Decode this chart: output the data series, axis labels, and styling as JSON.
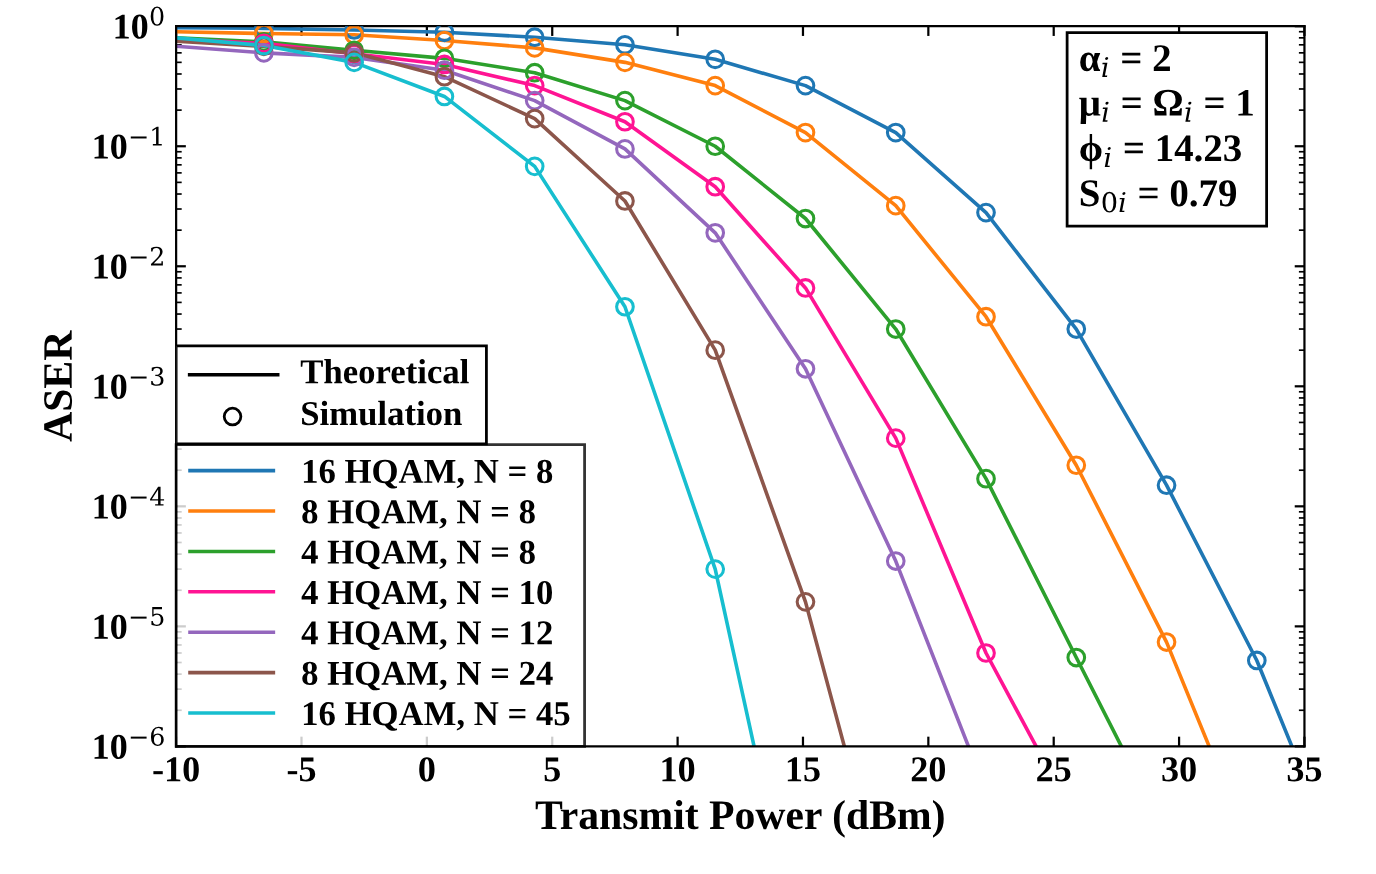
{
  "chart_data": {
    "type": "line",
    "xlabel": "Transmit Power (dBm)",
    "ylabel": "ASER",
    "log": "y",
    "xlim": [
      -10,
      35
    ],
    "xticks": [
      -10,
      -5,
      0,
      5,
      10,
      15,
      20,
      25,
      30,
      35
    ],
    "ylim": [
      1e-06,
      1
    ],
    "yticks": [
      {
        "value": 1,
        "label": "10$^{0}$"
      },
      {
        "value": 0.1,
        "label": "10$^{−1}$"
      },
      {
        "value": 0.01,
        "label": "10$^{−2}$"
      },
      {
        "value": 0.001,
        "label": "10$^{−3}$"
      },
      {
        "value": 0.0001,
        "label": "10$^{−4}$"
      },
      {
        "value": 1e-05,
        "label": "10$^{−5}$"
      },
      {
        "value": 1e-06,
        "label": "10$^{−6}$"
      }
    ],
    "grid": false,
    "legend": "bottom left",
    "line_style": "solid",
    "annotations": [
      "α$_{i}$ = 2\nμ$_{i}$ = Ω$_{i}$ = 1\nϕ$_{i}$ = 14.23\nS$_{0i}$ = 0.79",
      "Theoretical",
      "Simulation"
    ],
    "series": [
      {
        "name": "16 HQAM, N = 8",
        "color": "#1f77b4",
        "x": [
          -10,
          -6.5,
          -2.9,
          0.7,
          4.3,
          7.9,
          11.5,
          15.1,
          18.7,
          22.3,
          25.9,
          29.5,
          33.1,
          34.5
        ],
        "values": [
          0.97,
          0.96,
          0.93,
          0.89,
          0.81,
          0.7,
          0.53,
          0.32,
          0.13,
          0.028,
          0.003,
          0.00015,
          5.2e-06,
          1e-06
        ]
      },
      {
        "name": "8 HQAM, N = 8",
        "color": "#ff7f0e",
        "x": [
          -10,
          -6.5,
          -2.9,
          0.7,
          4.3,
          7.9,
          11.5,
          15.1,
          18.7,
          22.3,
          25.9,
          29.5,
          31.2
        ],
        "values": [
          0.9,
          0.87,
          0.85,
          0.76,
          0.66,
          0.5,
          0.32,
          0.13,
          0.032,
          0.0038,
          0.00022,
          7.4e-06,
          1e-06
        ]
      },
      {
        "name": "4 HQAM, N = 8",
        "color": "#2ca02c",
        "x": [
          -10,
          -6.5,
          -2.9,
          0.7,
          4.3,
          7.9,
          11.5,
          15.1,
          18.7,
          22.3,
          25.9,
          27.7
        ],
        "values": [
          0.8,
          0.74,
          0.63,
          0.54,
          0.41,
          0.24,
          0.1,
          0.025,
          0.003,
          0.00017,
          5.5e-06,
          1e-06
        ]
      },
      {
        "name": "4 HQAM, N = 10",
        "color": "#ff1493",
        "x": [
          -10,
          -6.5,
          -2.9,
          0.7,
          4.3,
          7.9,
          11.5,
          15.1,
          18.7,
          22.3,
          24.3
        ],
        "values": [
          0.78,
          0.72,
          0.59,
          0.48,
          0.32,
          0.16,
          0.046,
          0.0066,
          0.00037,
          6e-06,
          1e-06
        ]
      },
      {
        "name": "4 HQAM, N = 12",
        "color": "#9467bd",
        "x": [
          -10,
          -6.5,
          -2.9,
          0.7,
          4.3,
          7.9,
          11.5,
          15.1,
          18.7,
          21.6
        ],
        "values": [
          0.68,
          0.6,
          0.55,
          0.43,
          0.24,
          0.095,
          0.019,
          0.0014,
          3.5e-05,
          1e-06
        ]
      },
      {
        "name": "8 HQAM, N = 24",
        "color": "#8c564b",
        "x": [
          -10,
          -6.5,
          -2.9,
          0.7,
          4.3,
          7.9,
          11.5,
          15.1,
          16.65
        ],
        "values": [
          0.75,
          0.68,
          0.6,
          0.38,
          0.17,
          0.035,
          0.002,
          1.6e-05,
          1e-06
        ]
      },
      {
        "name": "16 HQAM, N = 45",
        "color": "#17becf",
        "x": [
          -10,
          -6.5,
          -2.9,
          0.7,
          4.3,
          7.9,
          11.5,
          13.05
        ],
        "values": [
          0.8,
          0.69,
          0.5,
          0.26,
          0.068,
          0.0046,
          3e-05,
          1e-06
        ]
      },
      {
        "type": "scatter",
        "marker": "circle",
        "color": "#000000",
        "x": [
          -6.5,
          -2.9,
          0.7,
          4.3,
          7.9,
          11.5,
          15.1,
          18.7,
          22.3,
          25.9,
          29.5,
          33.1,
          -6.5,
          -2.9,
          0.7,
          4.3,
          7.9,
          11.5,
          15.1,
          18.7,
          22.3,
          25.9,
          29.5,
          -6.5,
          -2.9,
          0.7,
          4.3,
          7.9,
          11.5,
          15.1,
          18.7,
          22.3,
          25.9,
          -6.5,
          -2.9,
          0.7,
          4.3,
          7.9,
          11.5,
          15.1,
          18.7,
          22.3,
          -6.5,
          -2.9,
          0.7,
          4.3,
          7.9,
          11.5,
          15.1,
          18.7,
          -6.5,
          -2.9,
          0.7,
          4.3,
          7.9,
          11.5,
          15.1,
          -6.5,
          -2.9,
          0.7,
          4.3,
          7.9,
          11.5
        ],
        "values": [
          0.96,
          0.93,
          0.89,
          0.81,
          0.7,
          0.53,
          0.32,
          0.13,
          0.028,
          0.003,
          0.00015,
          5.2e-06,
          0.87,
          0.85,
          0.76,
          0.66,
          0.5,
          0.32,
          0.13,
          0.032,
          0.0038,
          0.00022,
          7.4e-06,
          0.74,
          0.63,
          0.54,
          0.41,
          0.24,
          0.1,
          0.025,
          0.003,
          0.00017,
          5.5e-06,
          0.72,
          0.59,
          0.48,
          0.32,
          0.16,
          0.046,
          0.0066,
          0.00037,
          6e-06,
          0.6,
          0.55,
          0.43,
          0.24,
          0.095,
          0.019,
          0.0014,
          3.5e-05,
          0.68,
          0.6,
          0.38,
          0.17,
          0.035,
          0.002,
          1.6e-05,
          0.69,
          0.5,
          0.26,
          0.068,
          0.0046,
          3e-05
        ],
        "colors": [
          "#1f77b4",
          "#1f77b4",
          "#1f77b4",
          "#1f77b4",
          "#1f77b4",
          "#1f77b4",
          "#1f77b4",
          "#1f77b4",
          "#1f77b4",
          "#1f77b4",
          "#1f77b4",
          "#1f77b4",
          "#ff7f0e",
          "#ff7f0e",
          "#ff7f0e",
          "#ff7f0e",
          "#ff7f0e",
          "#ff7f0e",
          "#ff7f0e",
          "#ff7f0e",
          "#ff7f0e",
          "#ff7f0e",
          "#ff7f0e",
          "#2ca02c",
          "#2ca02c",
          "#2ca02c",
          "#2ca02c",
          "#2ca02c",
          "#2ca02c",
          "#2ca02c",
          "#2ca02c",
          "#2ca02c",
          "#2ca02c",
          "#ff1493",
          "#ff1493",
          "#ff1493",
          "#ff1493",
          "#ff1493",
          "#ff1493",
          "#ff1493",
          "#ff1493",
          "#ff1493",
          "#9467bd",
          "#9467bd",
          "#9467bd",
          "#9467bd",
          "#9467bd",
          "#9467bd",
          "#9467bd",
          "#9467bd",
          "#8c564b",
          "#8c564b",
          "#8c564b",
          "#8c564b",
          "#8c564b",
          "#8c564b",
          "#8c564b",
          "#17becf",
          "#17becf",
          "#17becf",
          "#17becf",
          "#17becf",
          "#17becf"
        ]
      }
    ]
  }
}
